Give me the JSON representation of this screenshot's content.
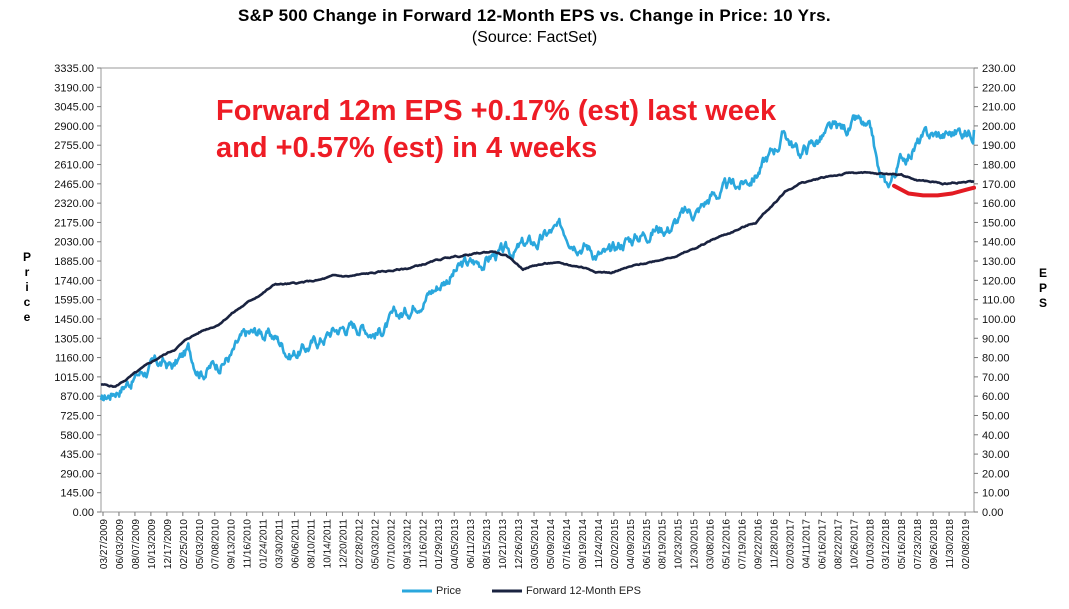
{
  "title": "S&P 500 Change in Forward 12-Month EPS vs. Change in Price: 10 Yrs.",
  "subtitle": "(Source: FactSet)",
  "annotation": {
    "line1": "Forward 12m EPS +0.17% (est) last week",
    "line2": "and +0.57% (est) in 4 weeks",
    "color": "#ee1c25"
  },
  "y_left_label": "Price",
  "y_right_label": "EPS",
  "colors": {
    "price": "#2aa7dd",
    "eps": "#1a2340",
    "highlight": "#e31b23"
  },
  "chart_data": {
    "type": "line",
    "title": "S&P 500 Change in Forward 12-Month EPS vs. Change in Price: 10 Yrs.",
    "ylabel": "Price",
    "y2label": "EPS",
    "ylim": [
      0,
      3335
    ],
    "y2lim": [
      0,
      230
    ],
    "yticks": [
      "0.00",
      "145.00",
      "290.00",
      "435.00",
      "580.00",
      "725.00",
      "870.00",
      "1015.00",
      "1160.00",
      "1305.00",
      "1450.00",
      "1595.00",
      "1740.00",
      "1885.00",
      "2030.00",
      "2175.00",
      "2320.00",
      "2465.00",
      "2610.00",
      "2755.00",
      "2900.00",
      "3045.00",
      "3190.00",
      "3335.00"
    ],
    "y2ticks": [
      "0.00",
      "10.00",
      "20.00",
      "30.00",
      "40.00",
      "50.00",
      "60.00",
      "70.00",
      "80.00",
      "90.00",
      "100.00",
      "110.00",
      "120.00",
      "130.00",
      "140.00",
      "150.00",
      "160.00",
      "170.00",
      "180.00",
      "190.00",
      "200.00",
      "210.00",
      "220.00",
      "230.00"
    ],
    "xticks": [
      "03/27/2009",
      "06/03/2009",
      "08/07/2009",
      "10/13/2009",
      "12/17/2009",
      "02/25/2010",
      "05/03/2010",
      "07/08/2010",
      "09/13/2010",
      "11/16/2010",
      "01/24/2011",
      "03/30/2011",
      "06/06/2011",
      "08/10/2011",
      "10/14/2011",
      "12/20/2011",
      "02/28/2012",
      "05/03/2012",
      "07/10/2012",
      "09/13/2012",
      "11/16/2012",
      "01/29/2013",
      "04/05/2013",
      "06/11/2013",
      "08/15/2013",
      "10/21/2013",
      "12/26/2013",
      "03/05/2014",
      "05/09/2014",
      "07/16/2014",
      "09/19/2014",
      "11/24/2014",
      "02/02/2015",
      "04/09/2015",
      "06/15/2015",
      "08/19/2015",
      "10/23/2015",
      "12/30/2015",
      "03/08/2016",
      "05/12/2016",
      "07/19/2016",
      "09/22/2016",
      "11/28/2016",
      "02/03/2017",
      "04/11/2017",
      "06/16/2017",
      "08/22/2017",
      "10/26/2017",
      "01/03/2018",
      "03/12/2018",
      "05/16/2018",
      "07/23/2018",
      "09/26/2018",
      "11/30/2018",
      "02/08/2019"
    ],
    "x_range": [
      "03/27/2009",
      "03/2019"
    ],
    "series": [
      {
        "name": "Price",
        "axis": "left",
        "x": [
          0,
          2,
          4,
          6,
          8,
          10,
          12,
          13,
          14,
          16,
          18,
          19,
          20,
          22,
          24,
          26,
          28,
          30,
          32,
          34,
          36,
          38,
          40,
          42,
          44,
          46,
          48,
          50,
          52,
          54,
          56,
          58,
          60,
          62,
          64,
          66,
          68,
          70,
          72,
          74,
          76,
          78,
          80,
          82,
          84,
          86,
          88,
          90,
          92,
          94,
          96,
          98,
          100,
          102,
          104,
          106,
          107,
          108,
          110,
          112,
          114,
          116,
          118,
          120
        ],
        "values": [
          815,
          925,
          1000,
          1070,
          1110,
          1090,
          1210,
          1120,
          1080,
          1120,
          1190,
          1260,
          1310,
          1350,
          1310,
          1200,
          1230,
          1290,
          1370,
          1400,
          1410,
          1360,
          1430,
          1500,
          1640,
          1690,
          1790,
          1850,
          1870,
          1940,
          1930,
          1990,
          2020,
          2100,
          2100,
          2060,
          1960,
          1910,
          2040,
          2080,
          2140,
          2150,
          2220,
          2260,
          2380,
          2420,
          2460,
          2550,
          2680,
          2850,
          2690,
          2780,
          2840,
          2860,
          2920,
          2790,
          2500,
          2420,
          2650,
          2760,
          2820,
          2830,
          2860,
          2870
        ]
      },
      {
        "name": "Forward 12-Month EPS",
        "axis": "right",
        "x": [
          0,
          2,
          4,
          6,
          8,
          10,
          12,
          14,
          16,
          18,
          20,
          22,
          24,
          26,
          28,
          30,
          32,
          34,
          36,
          38,
          40,
          42,
          44,
          46,
          48,
          50,
          52,
          54,
          56,
          58,
          60,
          62,
          64,
          66,
          68,
          70,
          72,
          74,
          76,
          78,
          80,
          82,
          84,
          86,
          88,
          90,
          92,
          94,
          96,
          98,
          100,
          102,
          104,
          106,
          108,
          110,
          112,
          114,
          116,
          118,
          120
        ],
        "values": [
          66,
          65,
          70,
          75,
          80,
          84,
          90,
          94,
          97,
          103,
          108,
          113,
          118,
          118,
          119,
          120,
          122,
          122,
          123,
          124,
          125,
          126,
          128,
          130,
          132,
          133,
          134,
          135,
          132,
          126,
          128,
          129,
          128,
          127,
          125,
          124,
          126,
          128,
          130,
          132,
          134,
          137,
          141,
          144,
          147,
          150,
          158,
          166,
          170,
          172,
          174,
          175,
          176,
          175,
          175,
          175,
          172,
          171,
          170,
          171,
          171
        ]
      }
    ],
    "highlight_segment": {
      "axis": "right",
      "x": [
        109,
        111,
        113,
        115,
        117,
        119,
        120
      ],
      "values": [
        169,
        165,
        164,
        164,
        165,
        167,
        168
      ]
    },
    "legend": [
      "Price",
      "Forward 12-Month EPS"
    ],
    "legend_position": "bottom",
    "grid": false
  }
}
